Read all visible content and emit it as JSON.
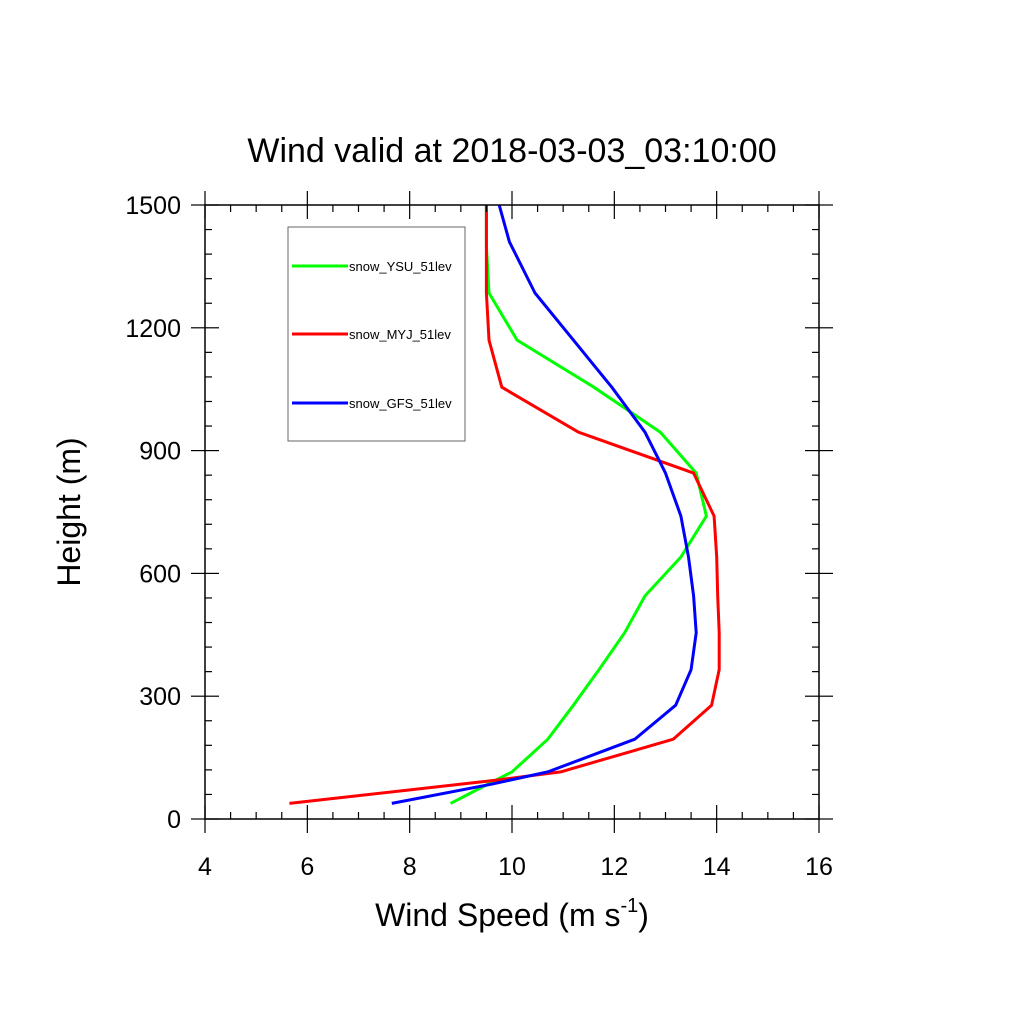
{
  "chart_data": {
    "type": "line",
    "title": "Wind valid at 2018-03-03_03:10:00",
    "xlabel": "Wind Speed (m s",
    "xlabel_sup": "-1",
    "xlabel_end": ")",
    "ylabel": "Height (m)",
    "xlim": [
      4,
      16
    ],
    "ylim": [
      0,
      1500
    ],
    "xticks": [
      4,
      6,
      8,
      10,
      12,
      14,
      16
    ],
    "yticks": [
      0,
      300,
      600,
      900,
      1200,
      1500
    ],
    "grid": false,
    "legend_position": "top-left",
    "series": [
      {
        "name": "snow_YSU_51lev",
        "color": "#00ff00",
        "points": [
          [
            8.8,
            38
          ],
          [
            9.4,
            77
          ],
          [
            10.0,
            115
          ],
          [
            10.7,
            195
          ],
          [
            11.2,
            278
          ],
          [
            11.7,
            365
          ],
          [
            12.2,
            455
          ],
          [
            12.6,
            545
          ],
          [
            13.3,
            640
          ],
          [
            13.8,
            740
          ],
          [
            13.6,
            845
          ],
          [
            12.9,
            945
          ],
          [
            11.6,
            1055
          ],
          [
            10.1,
            1170
          ],
          [
            9.55,
            1285
          ],
          [
            9.5,
            1400
          ],
          [
            9.5,
            1500
          ]
        ]
      },
      {
        "name": "snow_MYJ_51lev",
        "color": "#ff0000",
        "points": [
          [
            5.65,
            38
          ],
          [
            9.7,
            95
          ],
          [
            10.95,
            115
          ],
          [
            13.15,
            195
          ],
          [
            13.9,
            278
          ],
          [
            14.05,
            365
          ],
          [
            14.05,
            455
          ],
          [
            14.02,
            545
          ],
          [
            14.0,
            640
          ],
          [
            13.95,
            740
          ],
          [
            13.55,
            845
          ],
          [
            11.3,
            945
          ],
          [
            9.8,
            1055
          ],
          [
            9.55,
            1170
          ],
          [
            9.5,
            1285
          ],
          [
            9.5,
            1400
          ],
          [
            9.5,
            1500
          ]
        ]
      },
      {
        "name": "snow_GFS_51lev",
        "color": "#0000ff",
        "points": [
          [
            7.65,
            38
          ],
          [
            9.6,
            85
          ],
          [
            10.7,
            115
          ],
          [
            12.4,
            195
          ],
          [
            13.2,
            278
          ],
          [
            13.5,
            365
          ],
          [
            13.6,
            455
          ],
          [
            13.55,
            545
          ],
          [
            13.45,
            640
          ],
          [
            13.3,
            740
          ],
          [
            13.0,
            845
          ],
          [
            12.6,
            945
          ],
          [
            11.95,
            1055
          ],
          [
            11.2,
            1170
          ],
          [
            10.45,
            1285
          ],
          [
            9.95,
            1410
          ],
          [
            9.75,
            1500
          ]
        ]
      }
    ]
  }
}
